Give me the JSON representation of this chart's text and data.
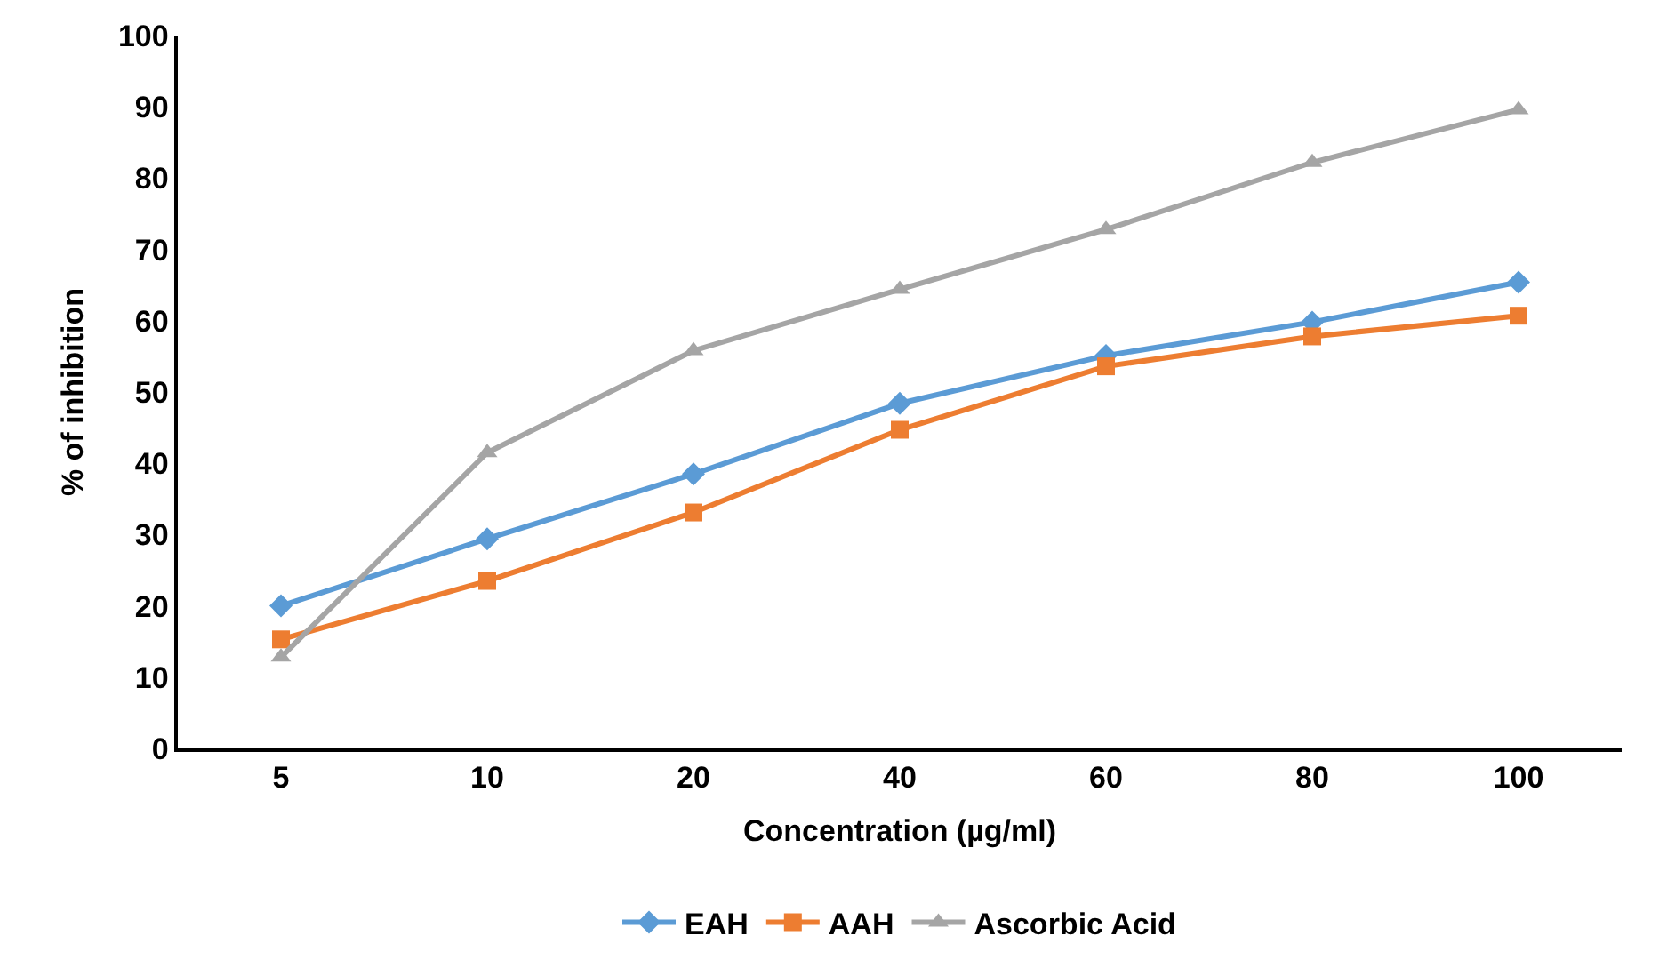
{
  "chart_data": {
    "type": "line",
    "xlabel": "Concentration (µg/ml)",
    "ylabel": "% of inhibition",
    "categories": [
      "5",
      "10",
      "20",
      "40",
      "60",
      "80",
      "100"
    ],
    "ylim": [
      0,
      100
    ],
    "yticks": [
      0,
      10,
      20,
      30,
      40,
      50,
      60,
      70,
      80,
      90,
      100
    ],
    "legend": "bottom",
    "series": [
      {
        "name": "EAH",
        "color": "#5b9bd5",
        "marker": "diamond",
        "values": [
          20.0,
          29.4,
          38.5,
          48.4,
          55.1,
          59.8,
          65.4
        ]
      },
      {
        "name": "AAH",
        "color": "#ed7d31",
        "marker": "square",
        "values": [
          15.3,
          23.5,
          33.1,
          44.7,
          53.6,
          57.8,
          60.7
        ]
      },
      {
        "name": "Ascorbic Acid",
        "color": "#a5a5a5",
        "marker": "triangle",
        "values": [
          12.8,
          41.5,
          55.8,
          64.4,
          72.8,
          82.2,
          89.6
        ]
      }
    ]
  }
}
